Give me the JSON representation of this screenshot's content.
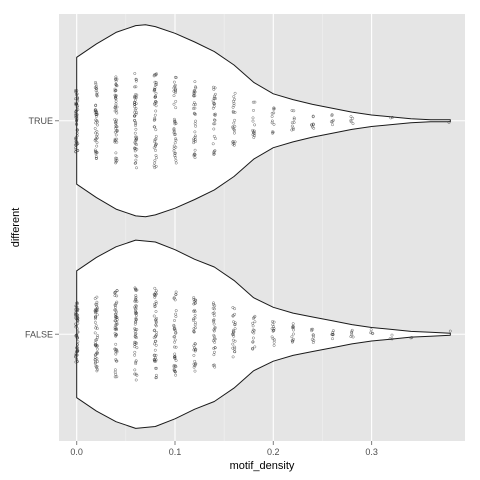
{
  "chart_data": {
    "type": "violin",
    "xlabel": "motif_density",
    "ylabel": "different",
    "xlim": [
      -0.018,
      0.395
    ],
    "x_ticks": [
      0.0,
      0.1,
      0.2,
      0.3
    ],
    "x_tick_labels": [
      "0.0",
      "0.1",
      "0.2",
      "0.3"
    ],
    "categories": [
      "TRUE",
      "FALSE"
    ],
    "grid": true,
    "legend": "none",
    "colors": {
      "panel_bg": "#e5e5e5",
      "grid_major": "#ffffff",
      "grid_minor": "#f2f2f2",
      "violin_fill": "#ffffff",
      "violin_stroke": "#1a1a1a",
      "point": "#333333"
    },
    "series": [
      {
        "category": "TRUE",
        "x_range": [
          0.0,
          0.38
        ],
        "density": [
          [
            0.0,
            0.66
          ],
          [
            0.02,
            0.8
          ],
          [
            0.04,
            0.92
          ],
          [
            0.06,
            0.99
          ],
          [
            0.07,
            1.0
          ],
          [
            0.08,
            0.98
          ],
          [
            0.1,
            0.91
          ],
          [
            0.12,
            0.82
          ],
          [
            0.14,
            0.72
          ],
          [
            0.16,
            0.58
          ],
          [
            0.18,
            0.4
          ],
          [
            0.2,
            0.28
          ],
          [
            0.22,
            0.22
          ],
          [
            0.24,
            0.17
          ],
          [
            0.26,
            0.13
          ],
          [
            0.28,
            0.09
          ],
          [
            0.3,
            0.06
          ],
          [
            0.32,
            0.04
          ],
          [
            0.34,
            0.02
          ],
          [
            0.36,
            0.01
          ],
          [
            0.38,
            0.01
          ]
        ],
        "jitter_points": [
          [
            0.0,
            60
          ],
          [
            0.02,
            50
          ],
          [
            0.04,
            55
          ],
          [
            0.06,
            55
          ],
          [
            0.08,
            50
          ],
          [
            0.1,
            40
          ],
          [
            0.12,
            36
          ],
          [
            0.14,
            30
          ],
          [
            0.16,
            24
          ],
          [
            0.18,
            14
          ],
          [
            0.2,
            12
          ],
          [
            0.22,
            10
          ],
          [
            0.24,
            8
          ],
          [
            0.26,
            6
          ],
          [
            0.28,
            5
          ],
          [
            0.32,
            2
          ],
          [
            0.38,
            1
          ]
        ]
      },
      {
        "category": "FALSE",
        "x_range": [
          0.0,
          0.38
        ],
        "density": [
          [
            0.0,
            0.66
          ],
          [
            0.02,
            0.8
          ],
          [
            0.04,
            0.91
          ],
          [
            0.06,
            0.98
          ],
          [
            0.08,
            0.96
          ],
          [
            0.1,
            0.88
          ],
          [
            0.12,
            0.78
          ],
          [
            0.14,
            0.7
          ],
          [
            0.16,
            0.56
          ],
          [
            0.18,
            0.38
          ],
          [
            0.2,
            0.28
          ],
          [
            0.22,
            0.22
          ],
          [
            0.24,
            0.18
          ],
          [
            0.26,
            0.14
          ],
          [
            0.28,
            0.1
          ],
          [
            0.3,
            0.07
          ],
          [
            0.32,
            0.05
          ],
          [
            0.34,
            0.03
          ],
          [
            0.36,
            0.02
          ],
          [
            0.38,
            0.01
          ]
        ],
        "jitter_points": [
          [
            0.0,
            65
          ],
          [
            0.02,
            55
          ],
          [
            0.04,
            55
          ],
          [
            0.06,
            55
          ],
          [
            0.08,
            50
          ],
          [
            0.1,
            42
          ],
          [
            0.12,
            38
          ],
          [
            0.14,
            30
          ],
          [
            0.16,
            26
          ],
          [
            0.18,
            16
          ],
          [
            0.2,
            14
          ],
          [
            0.22,
            12
          ],
          [
            0.24,
            9
          ],
          [
            0.26,
            7
          ],
          [
            0.28,
            6
          ],
          [
            0.3,
            4
          ],
          [
            0.32,
            3
          ],
          [
            0.34,
            2
          ],
          [
            0.38,
            1
          ]
        ]
      }
    ]
  }
}
